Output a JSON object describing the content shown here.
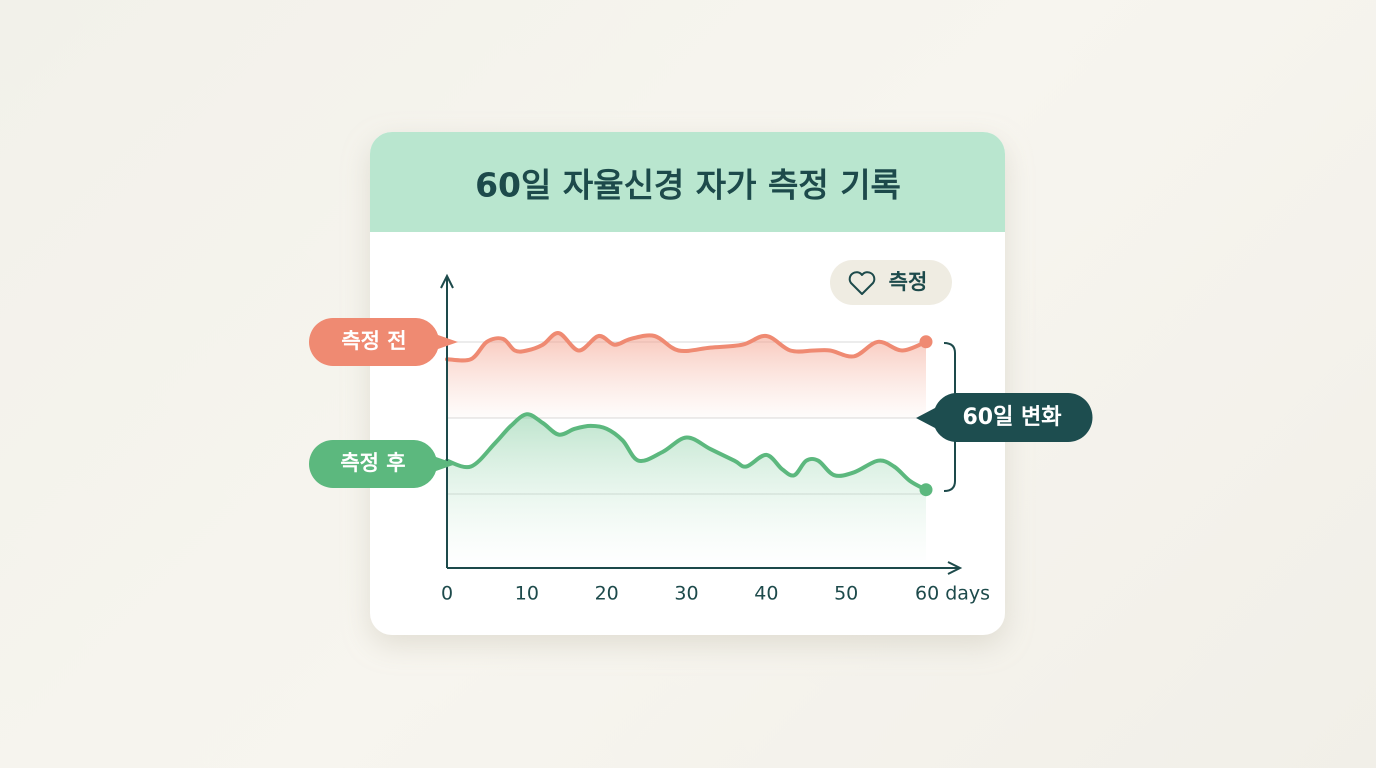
{
  "chart_data": {
    "type": "line",
    "title": "60일 자율신경 자가 측정 기록",
    "button": "측정",
    "annotation": "60일 변화",
    "xlim": [
      0,
      60
    ],
    "xticks": [
      0,
      10,
      20,
      30,
      40,
      50,
      {
        "value": 60,
        "label": "60 days"
      }
    ],
    "ylim": [
      0,
      100
    ],
    "series": [
      {
        "name": "측정 전",
        "color": "#ef8a72",
        "x": [
          0,
          3,
          5,
          7,
          8.5,
          10,
          12,
          14,
          16.5,
          19,
          21,
          23,
          26,
          29,
          33,
          37,
          40,
          43,
          46,
          48,
          51,
          54,
          57,
          60
        ],
        "values": [
          72,
          72,
          78,
          79,
          75,
          75,
          77,
          81,
          75,
          80,
          77,
          79,
          80,
          75,
          76,
          77,
          80,
          75,
          75,
          75,
          73,
          78,
          75,
          78
        ]
      },
      {
        "name": "측정 후",
        "color": "#5cb87e",
        "x": [
          0,
          3,
          6,
          8,
          10,
          12,
          14,
          16,
          18,
          20,
          22,
          24,
          27,
          30,
          33,
          36,
          37.5,
          40,
          42,
          43.5,
          45,
          46.5,
          48.5,
          51,
          54,
          56,
          58,
          60
        ],
        "values": [
          37,
          35,
          43,
          49,
          53,
          50,
          46,
          48,
          49,
          48,
          44,
          37,
          40,
          45,
          41,
          37,
          35,
          39,
          34,
          32,
          37,
          37,
          32,
          33,
          37,
          35,
          30,
          27
        ]
      }
    ]
  }
}
